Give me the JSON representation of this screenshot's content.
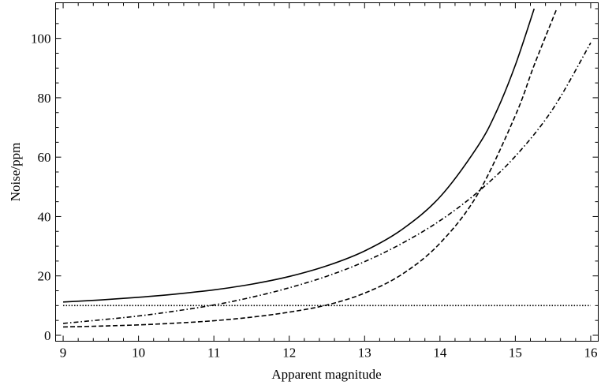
{
  "chart_data": {
    "type": "line",
    "title": "",
    "xlabel": "Apparent magnitude",
    "ylabel": "Noise/ppm",
    "xlim": [
      8.9,
      16.1
    ],
    "ylim": [
      -2,
      112
    ],
    "xticks": [
      9,
      10,
      11,
      12,
      13,
      14,
      15,
      16
    ],
    "yticks": [
      0,
      20,
      40,
      60,
      80,
      100
    ],
    "grid": false,
    "legend": "none",
    "series": [
      {
        "style": "solid",
        "x": [
          9,
          9.5,
          10,
          10.5,
          11,
          11.5,
          12,
          12.5,
          13,
          13.5,
          14,
          14.5,
          14.75,
          15,
          15.25
        ],
        "y": [
          11.2,
          11.9,
          12.8,
          13.9,
          15.3,
          17.2,
          19.8,
          23.4,
          28.4,
          35.7,
          46.6,
          63.6,
          75.4,
          91,
          110
        ]
      },
      {
        "style": "dashed",
        "x": [
          9,
          9.5,
          10,
          10.5,
          11,
          11.5,
          12,
          12.5,
          13,
          13.5,
          14,
          14.5,
          15,
          15.25,
          15.55
        ],
        "y": [
          2.8,
          3.1,
          3.5,
          4.1,
          4.9,
          6.1,
          7.8,
          10.2,
          14.2,
          20.6,
          31,
          47.5,
          74,
          91,
          110
        ]
      },
      {
        "style": "dash-dot",
        "x": [
          9,
          9.5,
          10,
          10.5,
          11,
          11.5,
          12,
          12.5,
          13,
          13.5,
          14,
          14.5,
          15,
          15.5,
          16
        ],
        "y": [
          4,
          5.2,
          6.5,
          8.2,
          10.2,
          12.8,
          16,
          19.9,
          24.8,
          31,
          38.6,
          48.2,
          60.3,
          76.3,
          98.5
        ]
      },
      {
        "style": "dotted",
        "x": [
          9,
          16
        ],
        "y": [
          10,
          10
        ]
      }
    ]
  }
}
